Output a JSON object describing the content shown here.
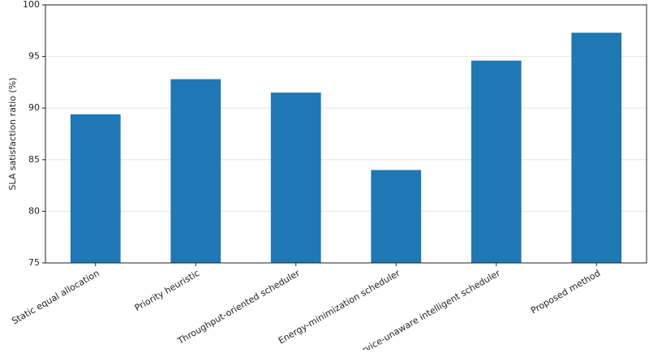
{
  "chart_data": {
    "type": "bar",
    "y_label": "SLA satisfaction ratio (%)",
    "categories": [
      "Static equal allocation",
      "Priority heuristic",
      "Throughput-oriented scheduler",
      "Energy-minimization scheduler",
      "Service-unaware intelligent scheduler",
      "Proposed method"
    ],
    "values": [
      89.4,
      92.8,
      91.5,
      84.0,
      94.6,
      97.3
    ],
    "color": "#1f77b4",
    "ylim": [
      75,
      100
    ],
    "yticks": [
      75,
      80,
      85,
      90,
      95,
      100
    ],
    "grid": true
  }
}
